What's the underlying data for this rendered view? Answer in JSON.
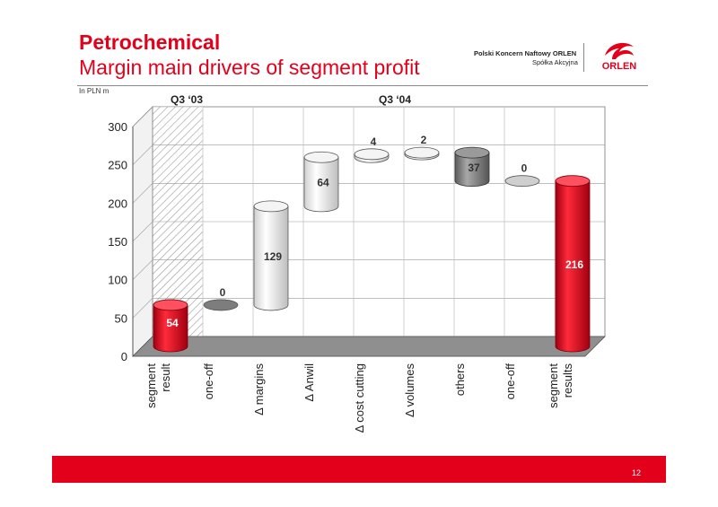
{
  "header": {
    "title": "Petrochemical",
    "subtitle": "Margin main drivers of segment profit",
    "company": "Polski Koncern Naftowy ORLEN",
    "company_form": "Spółka Akcyjna",
    "logo_text": "ORLEN"
  },
  "unit_label": "In PLN m",
  "page_number": "12",
  "colors": {
    "brand_red": "#e3001b"
  },
  "chart_data": {
    "type": "bar",
    "subtype": "waterfall-3d",
    "period_labels": [
      "Q3 ‘03",
      "Q3 ‘04"
    ],
    "categories": [
      "segment result",
      "one-off",
      "Δ margins",
      "Δ Anwil",
      "Δ cost cutting",
      "Δ volumes",
      "others",
      "one-off",
      "segment results"
    ],
    "values": [
      54,
      0,
      129,
      64,
      4,
      2,
      -37,
      0,
      216
    ],
    "value_labels": [
      "54",
      "0",
      "129",
      "64",
      "4",
      "2",
      "37",
      "0",
      "216"
    ],
    "bar_kinds": [
      "total",
      "change",
      "change",
      "change",
      "change",
      "change",
      "change",
      "change",
      "total"
    ],
    "colors": {
      "total": "#e3001b",
      "increase": "#e8e8e8",
      "decrease": "#8c8c8c",
      "zero": "#b0b0b0"
    },
    "ylim": [
      0,
      300
    ],
    "yticks": [
      0,
      50,
      100,
      150,
      200,
      250,
      300
    ],
    "grid": true
  }
}
